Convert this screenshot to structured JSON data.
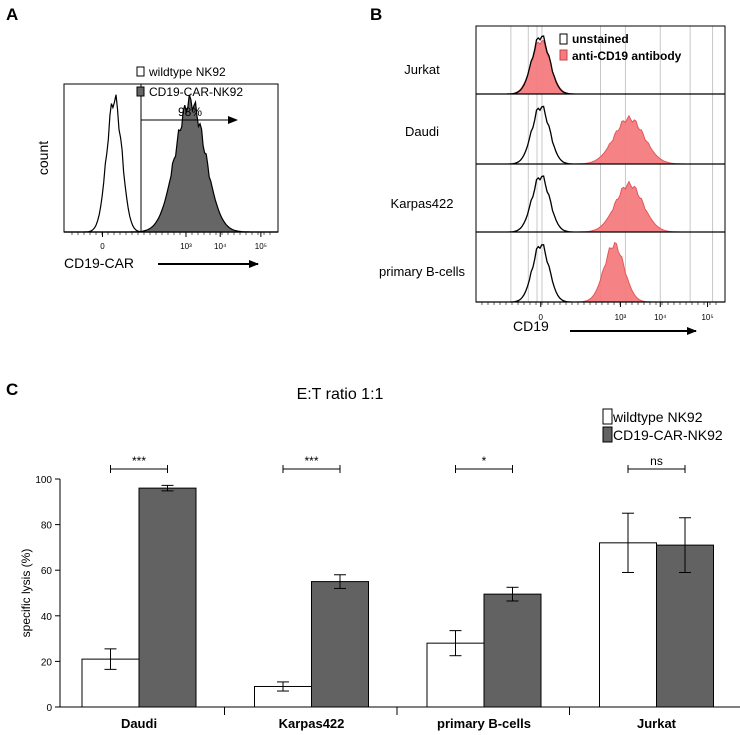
{
  "panels": {
    "a_label": "A",
    "b_label": "B",
    "c_label": "C"
  },
  "chart_data": [
    {
      "id": "A",
      "type": "area",
      "title": "",
      "xlabel": "CD19-CAR",
      "ylabel": "count",
      "x_scale": "biexponential",
      "xticks": [
        "0",
        "10³",
        "10⁴",
        "10⁵"
      ],
      "xlim_log_decades": [
        0,
        5
      ],
      "gate": {
        "label": "98%",
        "start_pos": 0.32
      },
      "legend": {
        "position": "top-right",
        "entries": [
          {
            "name": "wildtype NK92",
            "fill": "#ffffff"
          },
          {
            "name": "CD19-CAR-NK92",
            "fill": "#666666"
          }
        ]
      },
      "series": [
        {
          "name": "wildtype NK92",
          "fill": "#ffffff",
          "peak_pos": 0.235,
          "width_pos": 0.035,
          "height": 0.9
        },
        {
          "name": "CD19-CAR-NK92",
          "fill": "#666666",
          "peak_pos": 0.59,
          "width_pos": 0.07,
          "height": 0.88
        }
      ]
    },
    {
      "id": "B",
      "type": "area",
      "title": "",
      "xlabel": "CD19",
      "x_scale": "biexponential",
      "xticks": [
        "0",
        "10³",
        "10⁴",
        "10⁵"
      ],
      "legend": {
        "position": "top-right",
        "entries": [
          {
            "name": "unstained",
            "fill": "#ffffff"
          },
          {
            "name": "anti-CD19 antibody",
            "fill": "#f47c7e"
          }
        ]
      },
      "rows": [
        {
          "name": "Jurkat",
          "unstained": {
            "peak_pos": 0.26,
            "width": 0.035,
            "height": 0.85
          },
          "stained": {
            "peak_pos": 0.26,
            "width": 0.037,
            "height": 0.78
          }
        },
        {
          "name": "Daudi",
          "unstained": {
            "peak_pos": 0.26,
            "width": 0.035,
            "height": 0.82
          },
          "stained": {
            "peak_pos": 0.615,
            "width": 0.06,
            "height": 0.65
          }
        },
        {
          "name": "Karpas422",
          "unstained": {
            "peak_pos": 0.26,
            "width": 0.035,
            "height": 0.82
          },
          "stained": {
            "peak_pos": 0.615,
            "width": 0.055,
            "height": 0.7
          }
        },
        {
          "name": "primary B-cells",
          "unstained": {
            "peak_pos": 0.26,
            "width": 0.033,
            "height": 0.82
          },
          "stained": {
            "peak_pos": 0.555,
            "width": 0.04,
            "height": 0.82
          }
        }
      ]
    },
    {
      "id": "C",
      "type": "bar",
      "title": "E:T ratio 1:1",
      "xlabel": "",
      "ylabel": "specific lysis (%)",
      "ylim": [
        0,
        100
      ],
      "yticks": [
        0,
        20,
        40,
        60,
        80,
        100
      ],
      "categories": [
        "Daudi",
        "Karpas422",
        "primary B-cells",
        "Jurkat"
      ],
      "significance": [
        "***",
        "***",
        "*",
        "ns"
      ],
      "legend": {
        "position": "top-right"
      },
      "series": [
        {
          "name": "wildtype NK92",
          "color": "#ffffff",
          "values": [
            21,
            9,
            28,
            72
          ],
          "errors": [
            4.5,
            2,
            5.5,
            13
          ]
        },
        {
          "name": "CD19-CAR-NK92",
          "color": "#626262",
          "values": [
            96,
            55,
            49.5,
            71
          ],
          "errors": [
            1.2,
            3,
            3,
            12
          ]
        }
      ]
    }
  ]
}
